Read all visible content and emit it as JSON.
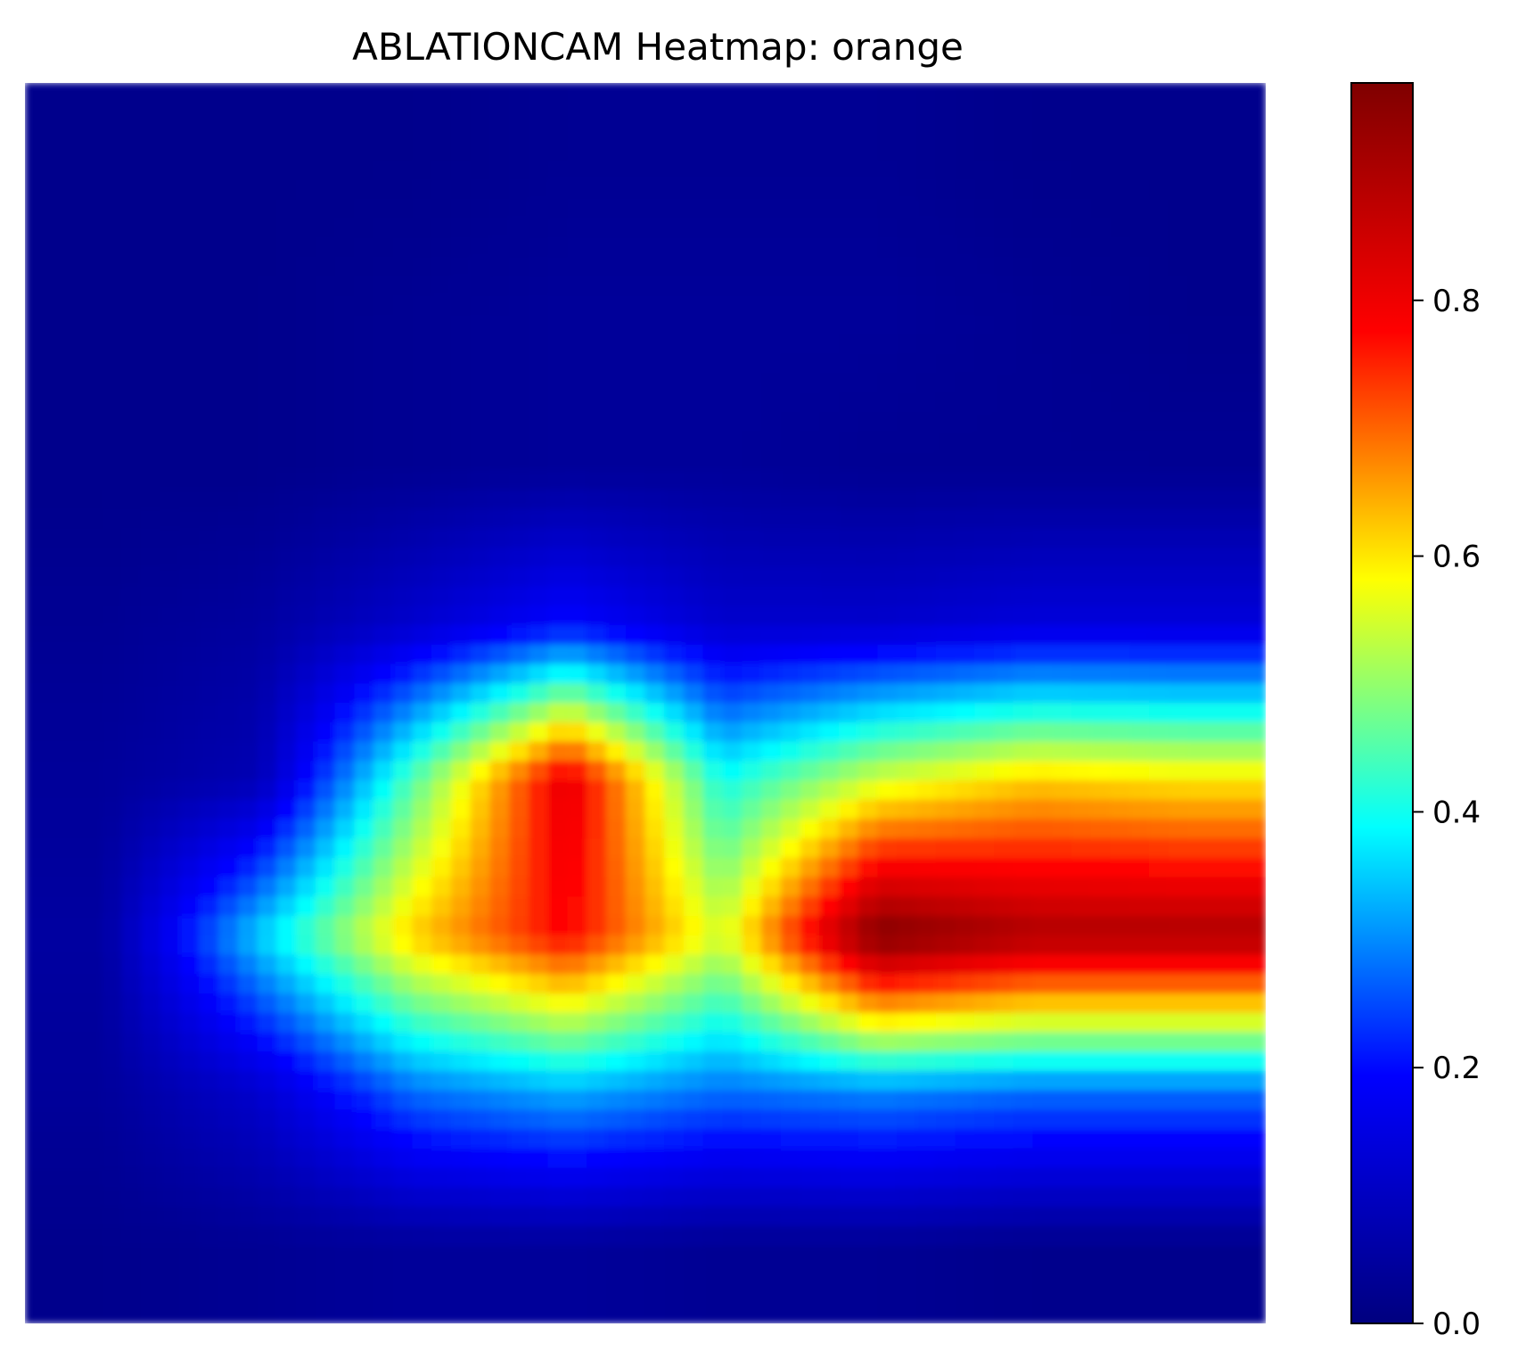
{
  "chart_data": {
    "type": "heatmap",
    "title": "ABLATIONCAM Heatmap: orange",
    "xlabel": "",
    "ylabel": "",
    "axes_visible": false,
    "colormap": "jet",
    "colormap_stops": [
      "#00007f",
      "#0000ff",
      "#00ffff",
      "#ffff00",
      "#ff0000",
      "#7f0000"
    ],
    "value_range": [
      0,
      0.97
    ],
    "colorbar": {
      "position": "right",
      "ticks": [
        0.0,
        0.2,
        0.4,
        0.6,
        0.8
      ],
      "tick_labels": [
        "0.0",
        "0.2",
        "0.4",
        "0.6",
        "0.8"
      ]
    },
    "grid_shape": [
      8,
      8
    ],
    "grid_values": [
      [
        0.02,
        0.02,
        0.02,
        0.03,
        0.03,
        0.03,
        0.02,
        0.02
      ],
      [
        0.02,
        0.02,
        0.03,
        0.04,
        0.04,
        0.04,
        0.03,
        0.02
      ],
      [
        0.02,
        0.02,
        0.03,
        0.04,
        0.04,
        0.03,
        0.03,
        0.03
      ],
      [
        0.03,
        0.05,
        0.12,
        0.2,
        0.12,
        0.12,
        0.14,
        0.14
      ],
      [
        0.04,
        0.08,
        0.45,
        0.82,
        0.4,
        0.55,
        0.62,
        0.6
      ],
      [
        0.05,
        0.35,
        0.62,
        0.78,
        0.55,
        0.97,
        0.9,
        0.9
      ],
      [
        0.04,
        0.12,
        0.28,
        0.33,
        0.28,
        0.3,
        0.28,
        0.28
      ],
      [
        0.02,
        0.03,
        0.04,
        0.04,
        0.03,
        0.03,
        0.02,
        0.02
      ]
    ]
  }
}
